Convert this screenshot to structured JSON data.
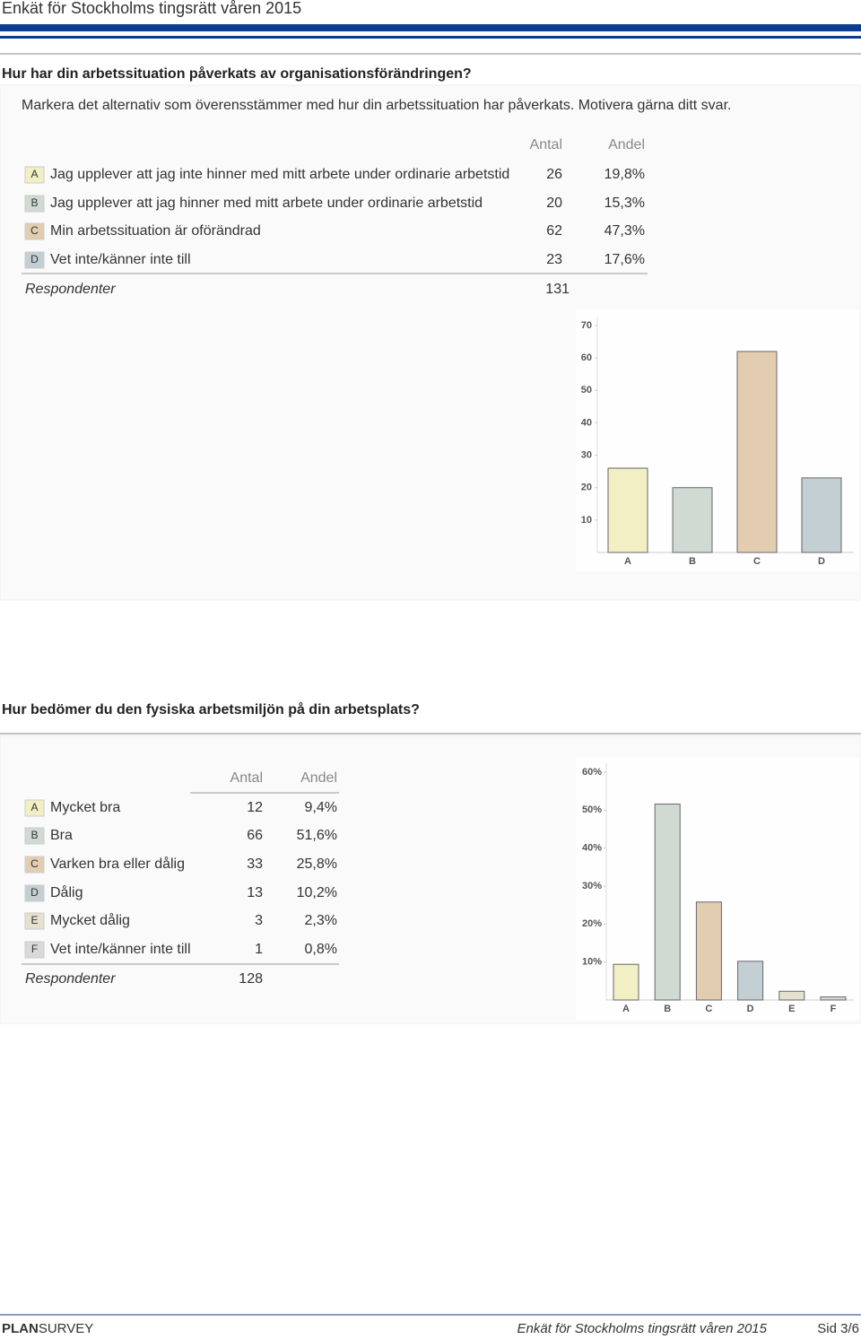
{
  "header": {
    "title": "Enkät för Stockholms tingsrätt våren 2015"
  },
  "sections": [
    {
      "question": "Hur har din arbetssituation påverkats av organisationsförändringen?",
      "instruction": "Markera det alternativ som överensstämmer med hur din arbetssituation har påverkats. Motivera gärna ditt svar.",
      "table": {
        "columns": [
          "Antal",
          "Andel"
        ],
        "rows": [
          {
            "letter": "A",
            "text": "Jag upplever att jag inte hinner med mitt arbete under ordinarie arbetstid",
            "count": "26",
            "share": "19,8%"
          },
          {
            "letter": "B",
            "text": "Jag upplever att jag hinner med mitt arbete under ordinarie arbetstid",
            "count": "20",
            "share": "15,3%"
          },
          {
            "letter": "C",
            "text": "Min arbetssituation är oförändrad",
            "count": "62",
            "share": "47,3%"
          },
          {
            "letter": "D",
            "text": "Vet inte/känner inte till",
            "count": "23",
            "share": "17,6%"
          }
        ],
        "respondents_label": "Respondenter",
        "respondents": "131"
      }
    },
    {
      "question": "Hur bedömer du den fysiska arbetsmiljön på din arbetsplats?",
      "table": {
        "columns": [
          "Antal",
          "Andel"
        ],
        "rows": [
          {
            "letter": "A",
            "text": "Mycket bra",
            "count": "12",
            "share": "9,4%"
          },
          {
            "letter": "B",
            "text": "Bra",
            "count": "66",
            "share": "51,6%"
          },
          {
            "letter": "C",
            "text": "Varken bra eller dålig",
            "count": "33",
            "share": "25,8%"
          },
          {
            "letter": "D",
            "text": "Dålig",
            "count": "13",
            "share": "10,2%"
          },
          {
            "letter": "E",
            "text": "Mycket dålig",
            "count": "3",
            "share": "2,3%"
          },
          {
            "letter": "F",
            "text": "Vet inte/känner inte till",
            "count": "1",
            "share": "0,8%"
          }
        ],
        "respondents_label": "Respondenter",
        "respondents": "128"
      }
    }
  ],
  "chart_data": [
    {
      "type": "bar",
      "categories": [
        "A",
        "B",
        "C",
        "D"
      ],
      "values": [
        26,
        20,
        62,
        23
      ],
      "colors": [
        "#f1efc3",
        "#d1dad2",
        "#e2cdb1",
        "#c4cfd4"
      ],
      "ylim": [
        0,
        70
      ],
      "yticks": [
        10,
        20,
        30,
        40,
        50,
        60,
        70
      ]
    },
    {
      "type": "bar",
      "categories": [
        "A",
        "B",
        "C",
        "D",
        "E",
        "F"
      ],
      "values": [
        9.4,
        51.6,
        25.8,
        10.2,
        2.3,
        0.8
      ],
      "colors": [
        "#f1efc3",
        "#d1dad2",
        "#e2cdb1",
        "#c4cfd4",
        "#e6e1cf",
        "#d9d9d9"
      ],
      "ylim": [
        0,
        60
      ],
      "yticks": [
        {
          "value": 10,
          "label": "10%"
        },
        {
          "value": 20,
          "label": "20%"
        },
        {
          "value": 30,
          "label": "30%"
        },
        {
          "value": 40,
          "label": "40%"
        },
        {
          "value": 50,
          "label": "50%"
        },
        {
          "value": 60,
          "label": "60%"
        }
      ]
    }
  ],
  "footer": {
    "brand_bold": "PLAN",
    "brand_rest": "SURVEY",
    "title": "Enkät för Stockholms tingsrätt våren 2015",
    "page": "Sid 3/6"
  }
}
